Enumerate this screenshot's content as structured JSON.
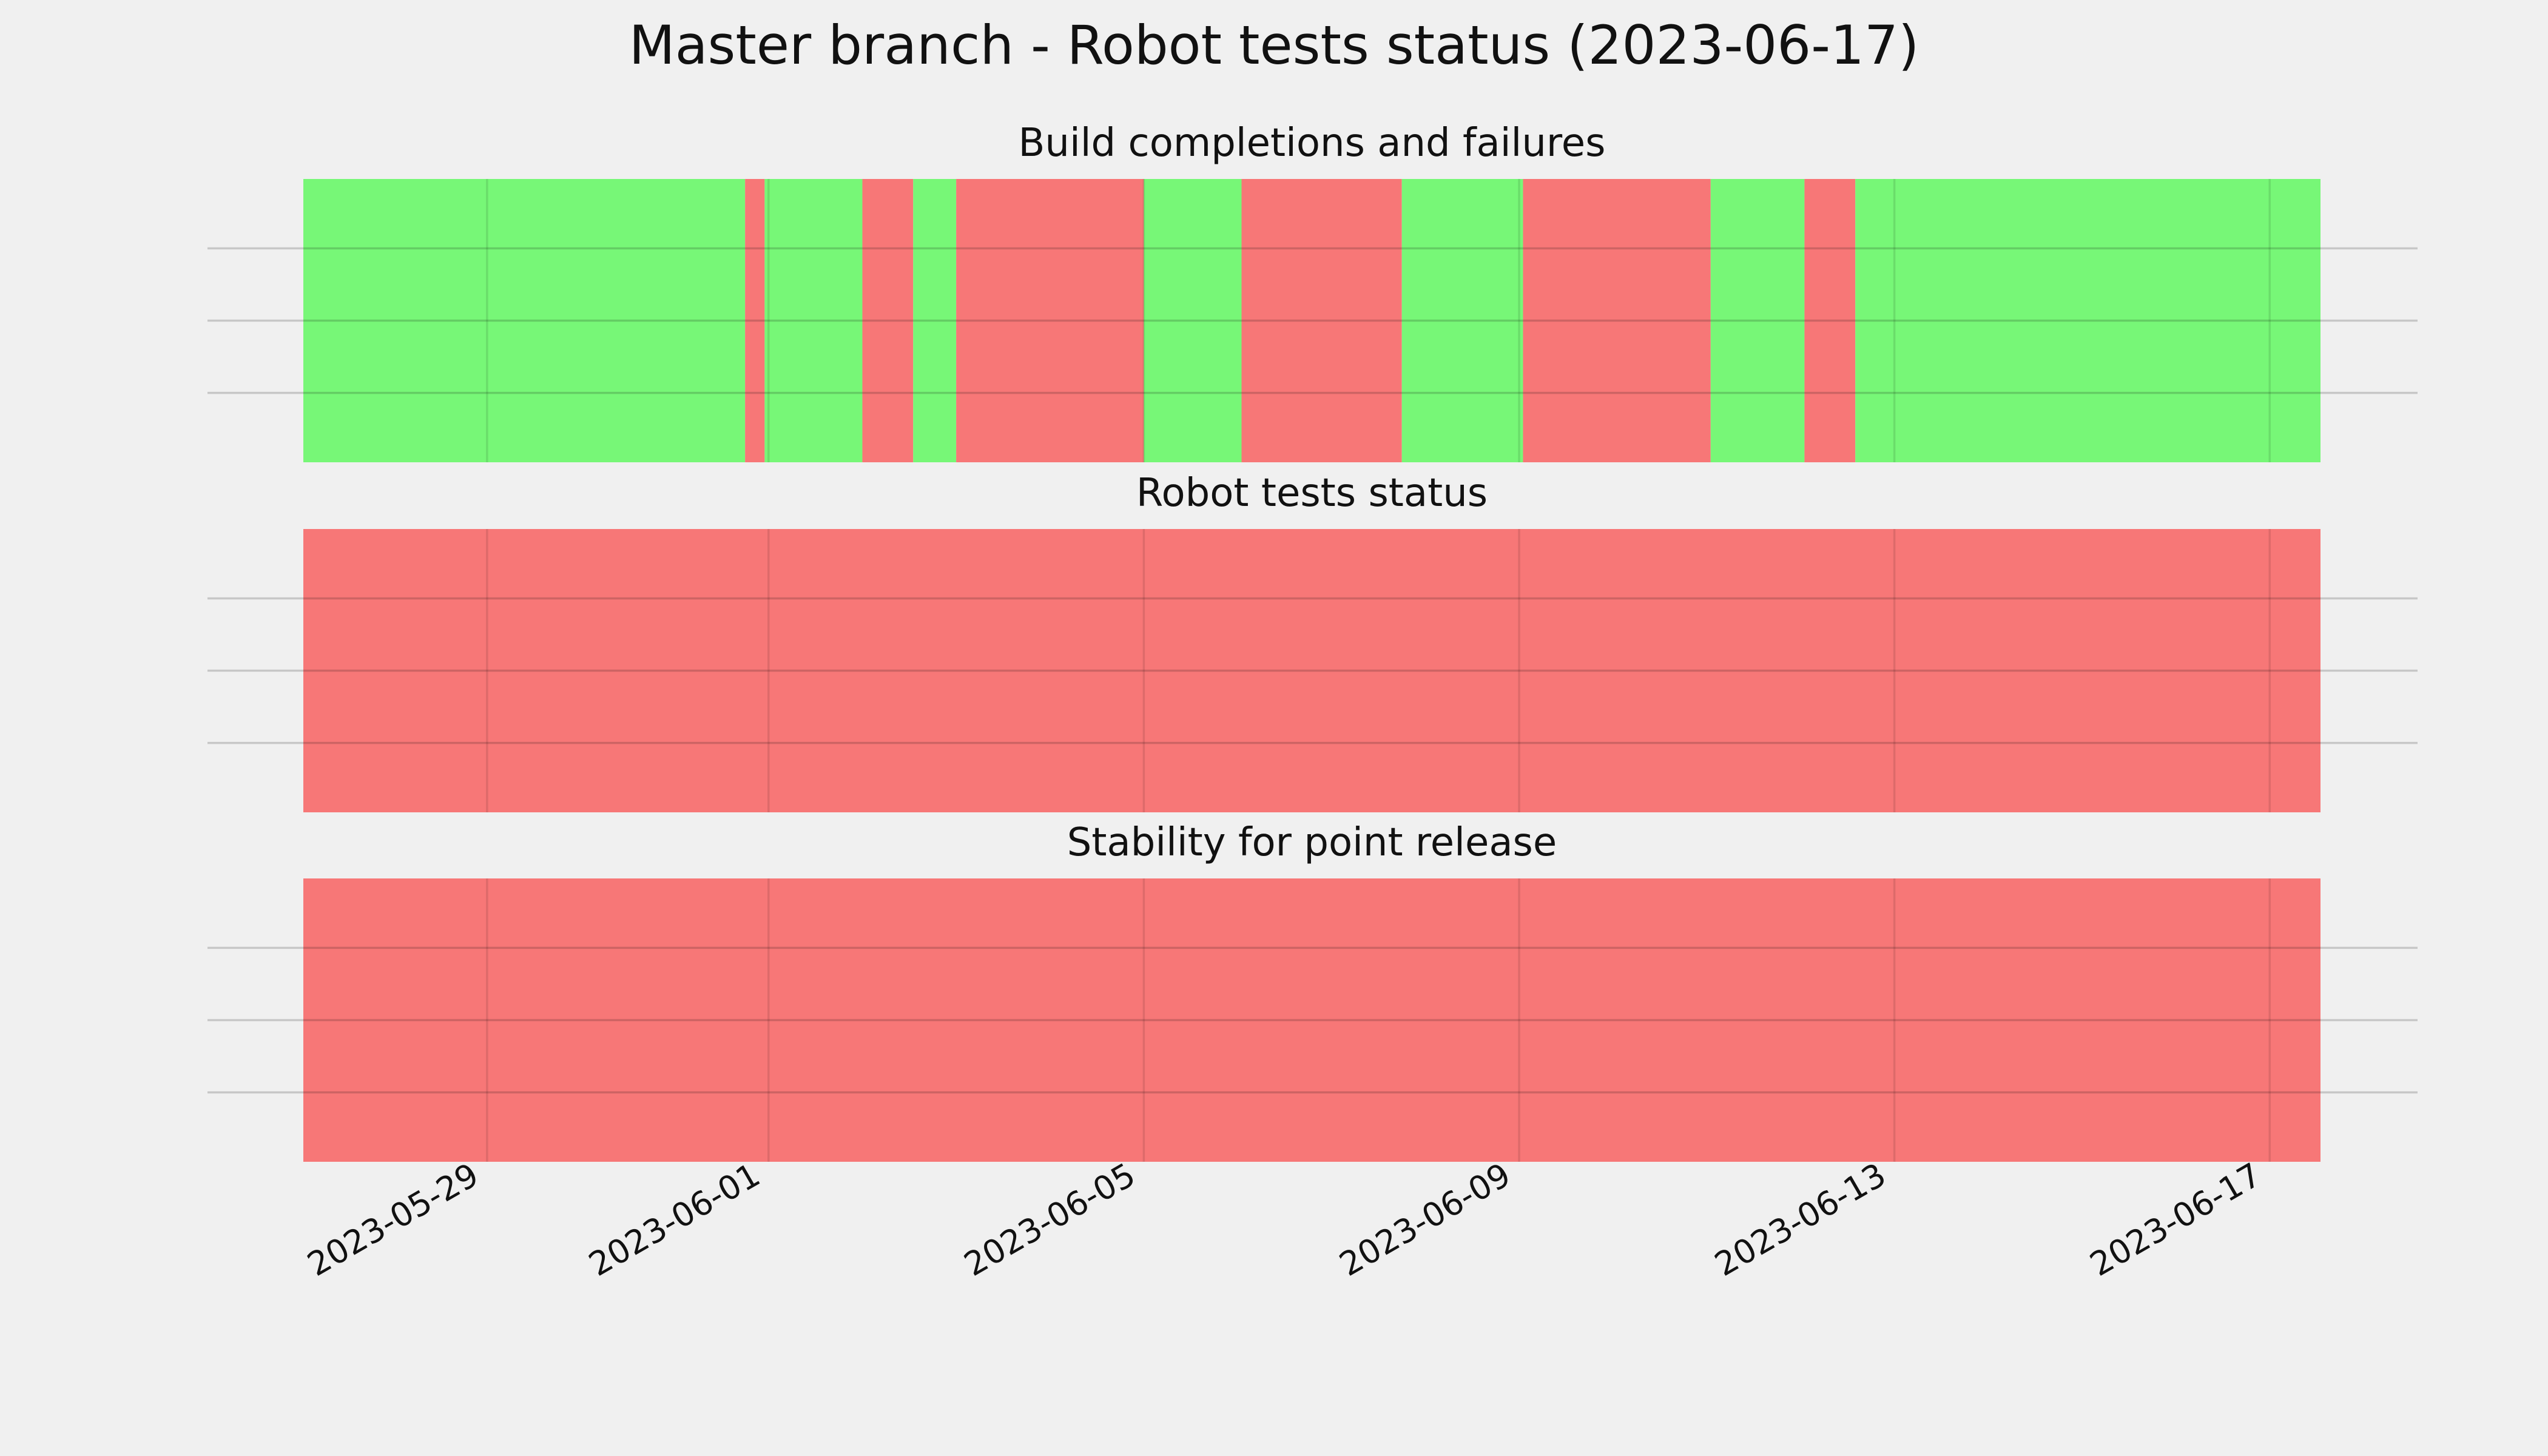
{
  "chart_data": {
    "type": "timeline",
    "title": "Master branch - Robot tests status (2023-06-17)",
    "x_ticks": [
      "2023-05-29",
      "2023-06-01",
      "2023-06-05",
      "2023-06-09",
      "2023-06-13",
      "2023-06-17"
    ],
    "x_range": [
      "2023-05-27 01:00",
      "2023-06-17 13:00"
    ],
    "grid": true,
    "colors": {
      "pass": "#77f777",
      "fail": "#f77777",
      "background": "#f0f0f0"
    },
    "panels": [
      {
        "title": "Build completions and failures",
        "segments": [
          {
            "start": "2023-05-27 01:00",
            "end": "2023-05-31 18:00",
            "status": "pass"
          },
          {
            "start": "2023-05-31 18:00",
            "end": "2023-05-31 23:00",
            "status": "fail"
          },
          {
            "start": "2023-05-31 23:00",
            "end": "2023-06-02 00:00",
            "status": "pass"
          },
          {
            "start": "2023-06-02 00:00",
            "end": "2023-06-02 13:00",
            "status": "fail"
          },
          {
            "start": "2023-06-02 13:00",
            "end": "2023-06-03 00:00",
            "status": "pass"
          },
          {
            "start": "2023-06-03 00:00",
            "end": "2023-06-05 00:00",
            "status": "fail"
          },
          {
            "start": "2023-06-05 00:00",
            "end": "2023-06-06 01:00",
            "status": "pass"
          },
          {
            "start": "2023-06-06 01:00",
            "end": "2023-06-07 18:00",
            "status": "fail"
          },
          {
            "start": "2023-06-07 18:00",
            "end": "2023-06-09 01:00",
            "status": "pass"
          },
          {
            "start": "2023-06-09 01:00",
            "end": "2023-06-11 01:00",
            "status": "fail"
          },
          {
            "start": "2023-06-11 01:00",
            "end": "2023-06-12 01:00",
            "status": "pass"
          },
          {
            "start": "2023-06-12 01:00",
            "end": "2023-06-12 14:00",
            "status": "fail"
          },
          {
            "start": "2023-06-12 14:00",
            "end": "2023-06-17 13:00",
            "status": "pass"
          }
        ]
      },
      {
        "title": "Robot tests status",
        "segments": [
          {
            "start": "2023-05-27 01:00",
            "end": "2023-06-17 13:00",
            "status": "fail"
          }
        ]
      },
      {
        "title": "Stability for point release",
        "segments": [
          {
            "start": "2023-05-27 01:00",
            "end": "2023-06-17 13:00",
            "status": "fail"
          }
        ]
      }
    ]
  }
}
